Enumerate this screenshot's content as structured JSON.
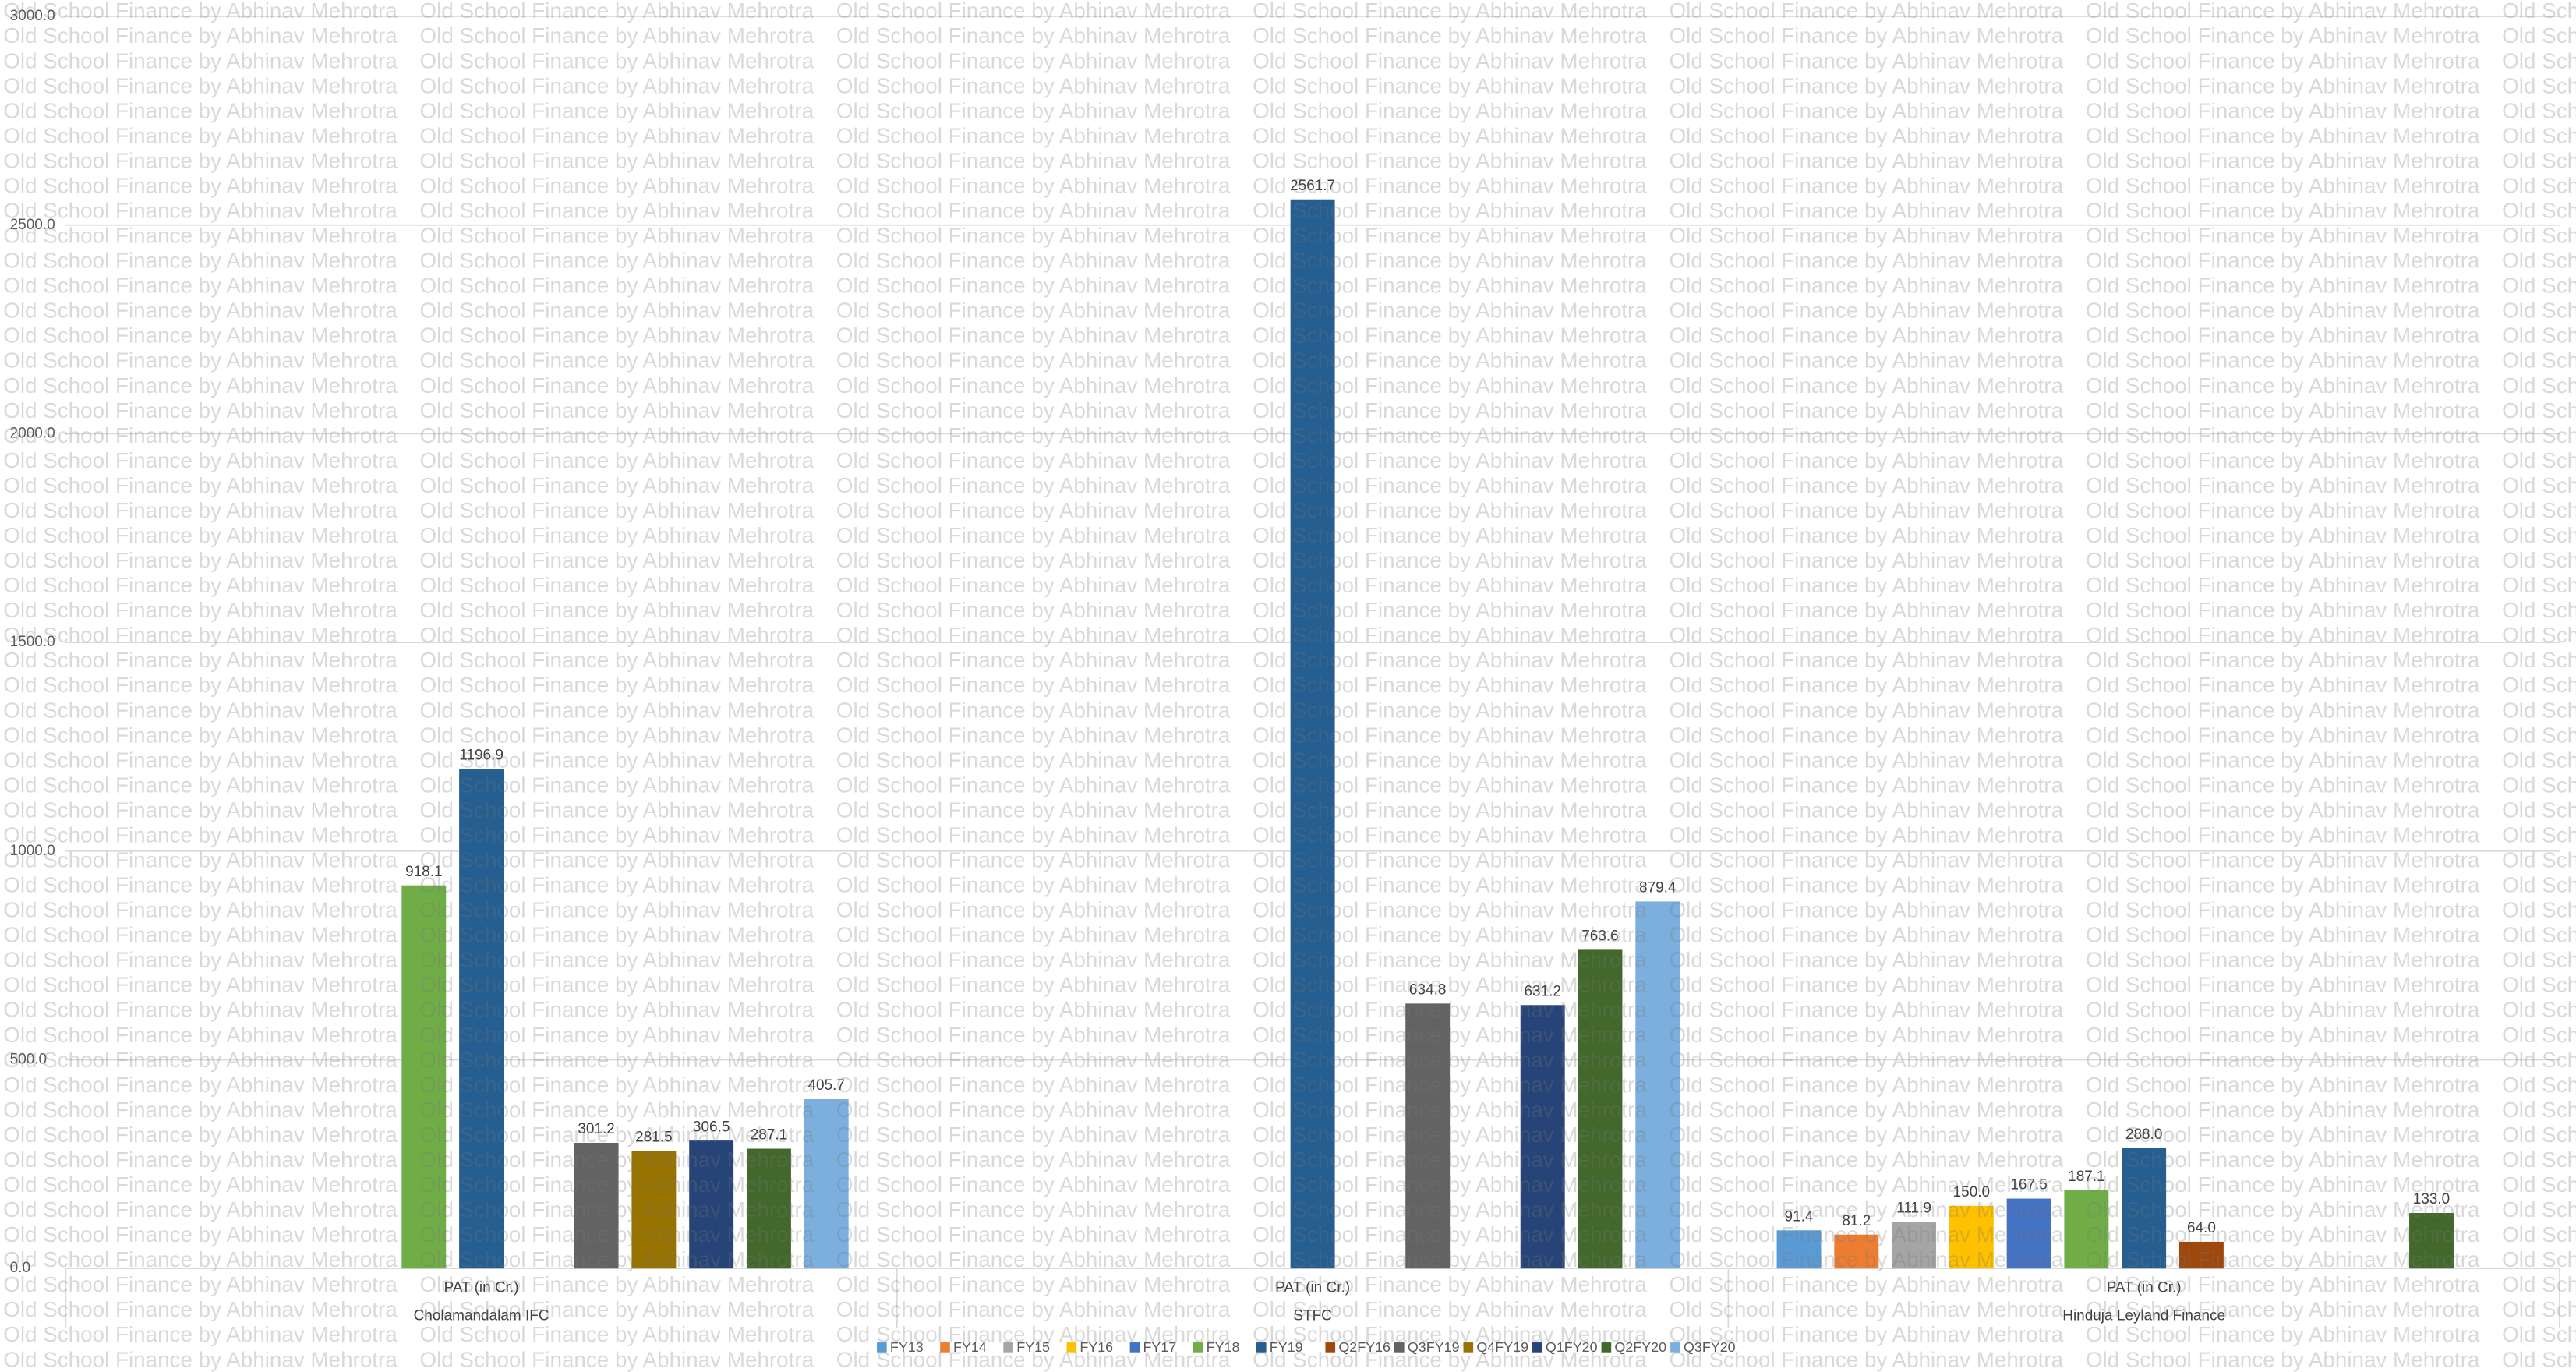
{
  "chart_data": {
    "type": "bar",
    "watermark": "Old School Finance by Abhinav Mehrotra",
    "categories": [
      "Cholamandalam IFC",
      "STFC",
      "Hinduja Leyland Finance"
    ],
    "subcategories": [
      "PAT (in Cr.)",
      "PAT (in Cr.)",
      "PAT (in Cr.)"
    ],
    "ylim": [
      0,
      3000
    ],
    "yticks": [
      {
        "value": 0,
        "label": "0.0"
      },
      {
        "value": 500,
        "label": "500.0"
      },
      {
        "value": 1000,
        "label": "1000.0"
      },
      {
        "value": 1500,
        "label": "1500.0"
      },
      {
        "value": 2000,
        "label": "2000.0"
      },
      {
        "value": 2500,
        "label": "2500.0"
      },
      {
        "value": 3000,
        "label": "3000.0"
      }
    ],
    "grid": true,
    "legend": "bottom",
    "series": [
      {
        "name": "FY13",
        "color": "#5b9bd5",
        "values": [
          null,
          null,
          91.4
        ],
        "value_labels": [
          null,
          null,
          "91.4"
        ]
      },
      {
        "name": "FY14",
        "color": "#ed7d31",
        "values": [
          null,
          null,
          81.2
        ],
        "value_labels": [
          null,
          null,
          "81.2"
        ]
      },
      {
        "name": "FY15",
        "color": "#a5a5a5",
        "values": [
          null,
          null,
          111.9
        ],
        "value_labels": [
          null,
          null,
          "111.9"
        ]
      },
      {
        "name": "FY16",
        "color": "#ffc000",
        "values": [
          null,
          null,
          150.0
        ],
        "value_labels": [
          null,
          null,
          "150.0"
        ]
      },
      {
        "name": "FY17",
        "color": "#4472c4",
        "values": [
          null,
          null,
          167.5
        ],
        "value_labels": [
          null,
          null,
          "167.5"
        ]
      },
      {
        "name": "FY18",
        "color": "#70ad47",
        "values": [
          918.1,
          null,
          187.1
        ],
        "value_labels": [
          "918.1",
          null,
          "187.1"
        ]
      },
      {
        "name": "FY19",
        "color": "#255e91",
        "values": [
          1196.9,
          2561.7,
          288.0
        ],
        "value_labels": [
          "1196.9",
          "2561.7",
          "288.0"
        ]
      },
      {
        "name": "Q2FY16",
        "color": "#9e480e",
        "values": [
          null,
          null,
          64.0
        ],
        "value_labels": [
          null,
          null,
          "64.0"
        ]
      },
      {
        "name": "Q3FY19",
        "color": "#636363",
        "values": [
          301.2,
          634.8,
          null
        ],
        "value_labels": [
          "301.2",
          "634.8",
          null
        ]
      },
      {
        "name": "Q4FY19",
        "color": "#997300",
        "values": [
          281.5,
          null,
          null
        ],
        "value_labels": [
          "281.5",
          null,
          null
        ]
      },
      {
        "name": "Q1FY20",
        "color": "#264478",
        "values": [
          306.5,
          631.2,
          null
        ],
        "value_labels": [
          "306.5",
          "631.2",
          null
        ]
      },
      {
        "name": "Q2FY20",
        "color": "#43682b",
        "values": [
          287.1,
          763.6,
          133.0
        ],
        "value_labels": [
          "287.1",
          "763.6",
          "133.0"
        ]
      },
      {
        "name": "Q3FY20",
        "color": "#7cafdd",
        "values": [
          405.7,
          879.4,
          null
        ],
        "value_labels": [
          "405.7",
          "879.4",
          null
        ]
      }
    ]
  }
}
